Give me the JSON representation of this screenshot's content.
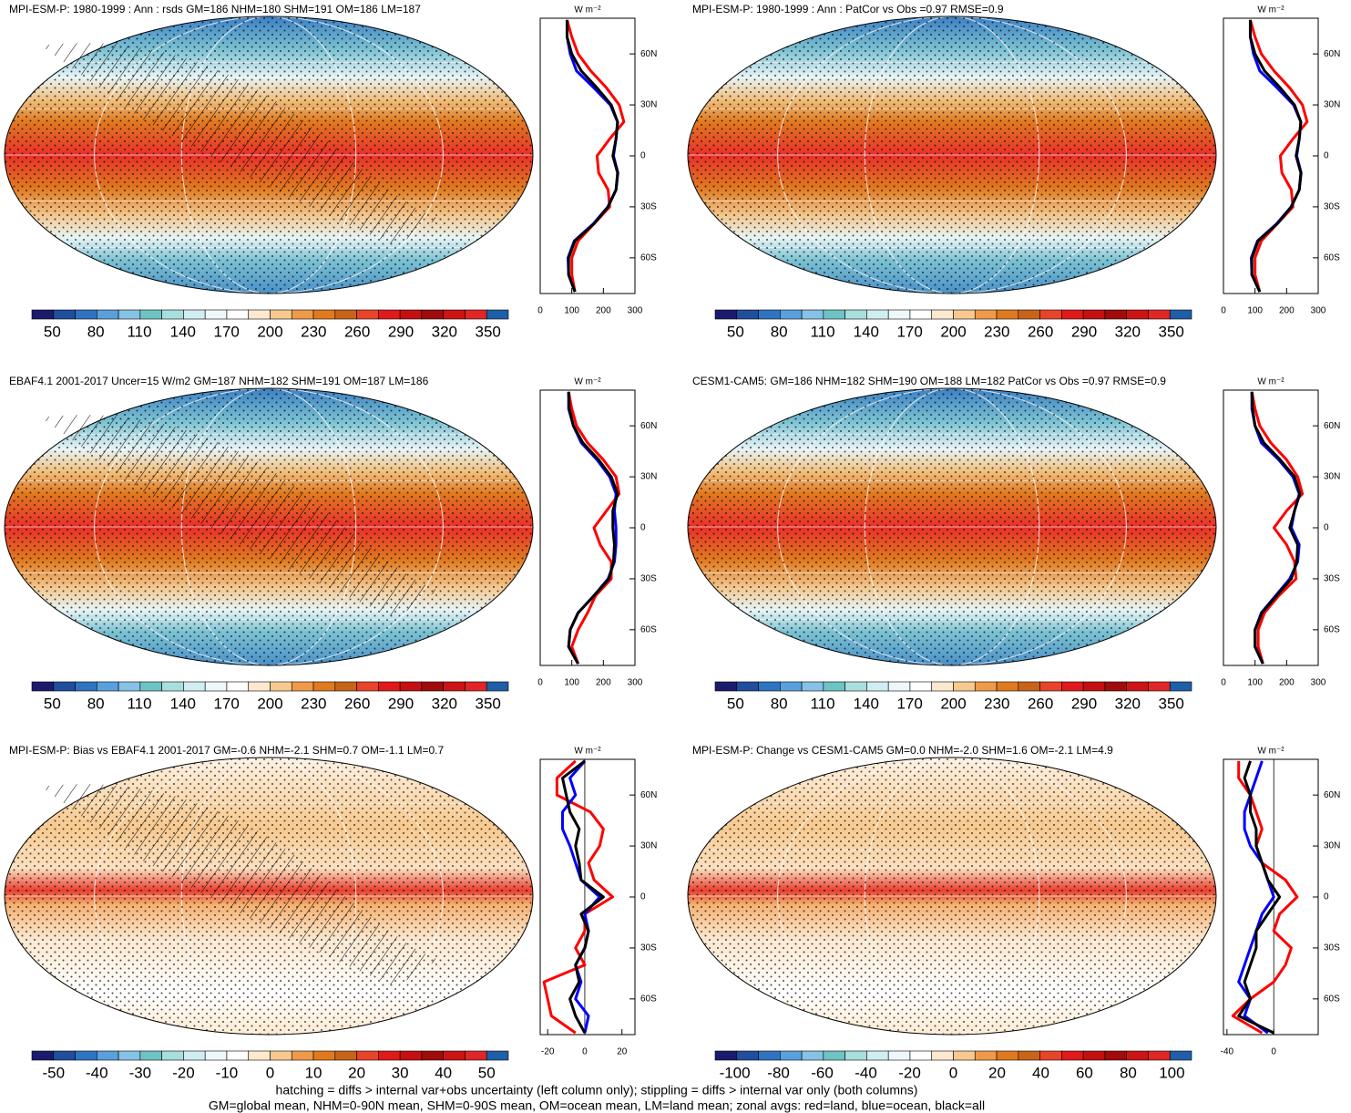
{
  "chart_data": [
    {
      "type": "map",
      "title": "MPI-ESM-P: 1980-1999 : Ann : rsds GM=186 NHM=180 SHM=191 OM=186 LM=187",
      "field": "abs",
      "hatching": true,
      "colorbar": {
        "clim": [
          36,
          364
        ],
        "ticks": [
          50,
          80,
          110,
          140,
          170,
          200,
          230,
          260,
          290,
          320,
          350
        ]
      },
      "profile": {
        "type": "line",
        "unit": "W m⁻²",
        "xlim": [
          0,
          300
        ],
        "xticks": [
          0,
          100,
          200,
          300
        ],
        "ylim": [
          -81,
          81
        ],
        "yticks": [
          {
            "value": 60,
            "label": "60N"
          },
          {
            "value": 30,
            "label": "30N"
          },
          0,
          {
            "value": -30,
            "label": "30S"
          },
          {
            "value": -60,
            "label": "60S"
          }
        ],
        "lat": [
          -80,
          -70,
          -60,
          -50,
          -40,
          -30,
          -20,
          -10,
          0,
          10,
          20,
          30,
          40,
          50,
          60,
          70,
          80
        ],
        "series": [
          {
            "color": "#ff0000",
            "values": [
              110,
              100,
              100,
              120,
              170,
              220,
              215,
              185,
              180,
              220,
              265,
              250,
              210,
              160,
              120,
              100,
              85
            ]
          },
          {
            "color": "#0000ff",
            "values": [
              110,
              90,
              88,
              108,
              168,
              214,
              240,
              246,
              232,
              240,
              245,
              222,
              170,
              115,
              95,
              85,
              85
            ]
          },
          {
            "color": "#000000",
            "values": [
              110,
              90,
              90,
              110,
              170,
              215,
              240,
              245,
              230,
              240,
              245,
              225,
              180,
              130,
              100,
              85,
              85
            ]
          }
        ]
      }
    },
    {
      "type": "map",
      "title": "MPI-ESM-P: 1980-1999 : Ann : PatCor vs Obs =0.97 RMSE=0.9",
      "field": "abs",
      "hatching": false,
      "colorbar": {
        "clim": [
          36,
          364
        ],
        "ticks": [
          50,
          80,
          110,
          140,
          170,
          200,
          230,
          260,
          290,
          320,
          350
        ]
      },
      "profile": {
        "type": "line",
        "unit": "W m⁻²",
        "xlim": [
          0,
          300
        ],
        "xticks": [
          0,
          100,
          200,
          300
        ],
        "ylim": [
          -81,
          81
        ],
        "yticks": [
          {
            "value": 60,
            "label": "60N"
          },
          {
            "value": 30,
            "label": "30N"
          },
          0,
          {
            "value": -30,
            "label": "30S"
          },
          {
            "value": -60,
            "label": "60S"
          }
        ],
        "lat": [
          -80,
          -70,
          -60,
          -50,
          -40,
          -30,
          -20,
          -10,
          0,
          10,
          20,
          30,
          40,
          50,
          60,
          70,
          80
        ],
        "series": [
          {
            "color": "#ff0000",
            "values": [
              115,
              100,
              100,
              120,
              170,
              220,
              215,
              185,
              180,
              220,
              265,
              250,
              210,
              160,
              120,
              100,
              85
            ]
          },
          {
            "color": "#0000ff",
            "values": [
              115,
              90,
              88,
              108,
              168,
              214,
              240,
              246,
              232,
              240,
              245,
              222,
              170,
              115,
              95,
              85,
              85
            ]
          },
          {
            "color": "#000000",
            "values": [
              115,
              90,
              90,
              110,
              170,
              215,
              240,
              245,
              230,
              240,
              245,
              225,
              180,
              130,
              100,
              85,
              85
            ]
          }
        ]
      }
    },
    {
      "type": "map",
      "title": "EBAF4.1 2001-2017 Uncer=15 W/m2 GM=187 NHM=182 SHM=191 OM=187 LM=186",
      "field": "abs",
      "hatching": true,
      "colorbar": {
        "clim": [
          36,
          364
        ],
        "ticks": [
          50,
          80,
          110,
          140,
          170,
          200,
          230,
          260,
          290,
          320,
          350
        ]
      },
      "profile": {
        "type": "line",
        "unit": "W m⁻²",
        "xlim": [
          0,
          300
        ],
        "xticks": [
          0,
          100,
          200,
          300
        ],
        "ylim": [
          -81,
          81
        ],
        "yticks": [
          {
            "value": 60,
            "label": "60N"
          },
          {
            "value": 30,
            "label": "30N"
          },
          0,
          {
            "value": -30,
            "label": "30S"
          },
          {
            "value": -60,
            "label": "60S"
          }
        ],
        "lat": [
          -80,
          -70,
          -60,
          -50,
          -40,
          -30,
          -20,
          -10,
          0,
          10,
          20,
          30,
          40,
          50,
          60,
          70,
          80
        ],
        "series": [
          {
            "color": "#ff0000",
            "values": [
              120,
              100,
              120,
              150,
              175,
              225,
              225,
              190,
              170,
              210,
              250,
              240,
              200,
              150,
              115,
              100,
              90
            ]
          },
          {
            "color": "#0000ff",
            "values": [
              120,
              90,
              95,
              120,
              170,
              215,
              235,
              240,
              240,
              235,
              240,
              220,
              180,
              130,
              105,
              90,
              90
            ]
          },
          {
            "color": "#000000",
            "values": [
              120,
              90,
              95,
              120,
              170,
              218,
              232,
              235,
              230,
              230,
              245,
              225,
              185,
              135,
              105,
              92,
              90
            ]
          }
        ]
      }
    },
    {
      "type": "map",
      "title": "CESM1-CAM5: GM=186 NHM=182 SHM=190 OM=188 LM=182 PatCor vs Obs =0.97 RMSE=0.9",
      "field": "abs",
      "hatching": false,
      "colorbar": {
        "clim": [
          36,
          364
        ],
        "ticks": [
          50,
          80,
          110,
          140,
          170,
          200,
          230,
          260,
          290,
          320,
          350
        ]
      },
      "profile": {
        "type": "line",
        "unit": "W m⁻²",
        "xlim": [
          0,
          300
        ],
        "xticks": [
          0,
          100,
          200,
          300
        ],
        "ylim": [
          -81,
          81
        ],
        "yticks": [
          {
            "value": 60,
            "label": "60N"
          },
          {
            "value": 30,
            "label": "30N"
          },
          0,
          {
            "value": -30,
            "label": "30S"
          },
          {
            "value": -60,
            "label": "60S"
          }
        ],
        "lat": [
          -80,
          -70,
          -60,
          -50,
          -40,
          -30,
          -20,
          -10,
          0,
          10,
          20,
          30,
          40,
          50,
          60,
          70,
          80
        ],
        "series": [
          {
            "color": "#ff0000",
            "values": [
              125,
              110,
              110,
              130,
              175,
              230,
              225,
              200,
              160,
              200,
              250,
              235,
              200,
              150,
              115,
              100,
              90
            ]
          },
          {
            "color": "#0000ff",
            "values": [
              125,
              100,
              100,
              120,
              165,
              210,
              235,
              240,
              215,
              225,
              240,
              220,
              175,
              120,
              100,
              90,
              90
            ]
          },
          {
            "color": "#000000",
            "values": [
              125,
              100,
              100,
              122,
              168,
              215,
              232,
              235,
              210,
              225,
              242,
              225,
              180,
              128,
              100,
              92,
              90
            ]
          }
        ]
      }
    },
    {
      "type": "map",
      "title": "MPI-ESM-P: Bias vs EBAF4.1 2001-2017 GM=-0.6 NHM=-2.1 SHM=0.7 OM=-1.1 LM=0.7",
      "field": "diff",
      "hatching": true,
      "colorbar": {
        "clim": [
          -55,
          55
        ],
        "ticks": [
          -50,
          -40,
          -30,
          -20,
          -10,
          0,
          10,
          20,
          30,
          40,
          50
        ]
      },
      "profile": {
        "type": "line",
        "unit": "W m⁻²",
        "xlim": [
          -24,
          27
        ],
        "xticks": [
          -20,
          0,
          20
        ],
        "ylim": [
          -81,
          81
        ],
        "yticks": [
          {
            "value": 60,
            "label": "60N"
          },
          {
            "value": 30,
            "label": "30N"
          },
          0,
          {
            "value": -30,
            "label": "30S"
          },
          {
            "value": -60,
            "label": "60S"
          }
        ],
        "lat": [
          -80,
          -70,
          -60,
          -50,
          -40,
          -30,
          -20,
          -10,
          0,
          10,
          20,
          30,
          40,
          50,
          60,
          70,
          80
        ],
        "series": [
          {
            "color": "#ff0000",
            "values": [
              -5,
              -18,
              -20,
              -22,
              0,
              -5,
              0,
              0,
              15,
              5,
              2,
              8,
              10,
              3,
              -15,
              -15,
              -5
            ]
          },
          {
            "color": "#0000ff",
            "values": [
              0,
              2,
              -5,
              -2,
              -5,
              0,
              2,
              0,
              8,
              -2,
              -5,
              -8,
              -12,
              -12,
              -5,
              -8,
              0
            ]
          },
          {
            "color": "#000000",
            "values": [
              0,
              -5,
              -8,
              -3,
              -5,
              0,
              2,
              -2,
              10,
              -2,
              -3,
              -5,
              -3,
              -8,
              -10,
              -12,
              0
            ]
          }
        ]
      }
    },
    {
      "type": "map",
      "title": "MPI-ESM-P: Change vs CESM1-CAM5 GM=0.0 NHM=-2.0 SHM=1.6 OM=-2.1 LM=4.9",
      "field": "diff",
      "hatching": false,
      "colorbar": {
        "clim": [
          -109,
          109
        ],
        "ticks": [
          -100,
          -80,
          -60,
          -40,
          -20,
          0,
          20,
          40,
          60,
          80,
          100
        ]
      },
      "profile": {
        "type": "line",
        "unit": "W m⁻²",
        "xlim": [
          -43,
          38
        ],
        "xticks": [
          -40,
          0
        ],
        "ylim": [
          -81,
          81
        ],
        "yticks": [
          {
            "value": 60,
            "label": "60N"
          },
          {
            "value": 30,
            "label": "30N"
          },
          0,
          {
            "value": -30,
            "label": "30S"
          },
          {
            "value": -60,
            "label": "60S"
          }
        ],
        "lat": [
          -80,
          -70,
          -60,
          -50,
          -40,
          -30,
          -20,
          -10,
          0,
          10,
          20,
          30,
          40,
          50,
          60,
          70,
          80
        ],
        "series": [
          {
            "color": "#ff0000",
            "values": [
              -10,
              -35,
              -20,
              0,
              10,
              15,
              0,
              5,
              20,
              10,
              -10,
              -15,
              -10,
              -15,
              -20,
              -30,
              -30
            ]
          },
          {
            "color": "#0000ff",
            "values": [
              -5,
              -25,
              -20,
              -30,
              -25,
              -20,
              -15,
              -10,
              0,
              -5,
              -10,
              -20,
              -25,
              -25,
              -20,
              -15,
              -10
            ]
          },
          {
            "color": "#000000",
            "values": [
              0,
              -30,
              -20,
              -25,
              -20,
              -15,
              -15,
              -5,
              5,
              -5,
              -10,
              -15,
              -15,
              -20,
              -20,
              -25,
              -20
            ]
          }
        ]
      }
    }
  ],
  "colorbar_colors": [
    "#1b1b6e",
    "#1f4e9c",
    "#2f74c0",
    "#5aa0dc",
    "#86c2e6",
    "#6ec4c4",
    "#a8dede",
    "#d0eef2",
    "#eef8fa",
    "#ffffff",
    "#fde9cf",
    "#f7c98f",
    "#ef9a4a",
    "#e07a1e",
    "#c8641a",
    "#e8442a",
    "#e01a1a",
    "#c41010",
    "#a00c0c",
    "#cc1414",
    "#e02626",
    "#1f5ea8"
  ],
  "footer": [
    "hatching = diffs > internal var+obs uncertainty (left column only); stippling = diffs > internal var only (both columns)",
    "GM=global mean, NHM=0-90N mean, SHM=0-90S mean, OM=ocean mean, LM=land mean; zonal avgs: red=land, blue=ocean, black=all"
  ]
}
